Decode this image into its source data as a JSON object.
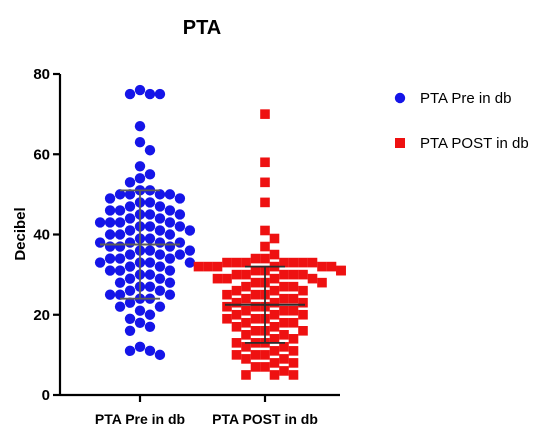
{
  "chart_data": {
    "type": "scatter",
    "title": "PTA",
    "ylabel": "Decibel",
    "xlabel": "",
    "ylim": [
      0,
      80
    ],
    "yticks": [
      0,
      20,
      40,
      60,
      80
    ],
    "grid": false,
    "legend_position": "right",
    "categories": [
      "PTA Pre in db",
      "PTA POST in db"
    ],
    "series": [
      {
        "name": "PTA Pre in db",
        "category": "PTA Pre in db",
        "color": "#1515e8",
        "marker": "circle",
        "mean": 37.5,
        "sd_upper": 51,
        "sd_lower": 24,
        "values": [
          76,
          75,
          75,
          75,
          67,
          63,
          61,
          57,
          55,
          54,
          53,
          51,
          51,
          50,
          50,
          50,
          50,
          49,
          49,
          48,
          48,
          47,
          47,
          46,
          46,
          46,
          45,
          45,
          45,
          44,
          44,
          43,
          43,
          43,
          43,
          42,
          42,
          42,
          41,
          41,
          41,
          40,
          40,
          40,
          39,
          39,
          38,
          38,
          38,
          38,
          37,
          37,
          37,
          36,
          36,
          36,
          35,
          35,
          35,
          34,
          34,
          34,
          33,
          33,
          33,
          33,
          32,
          32,
          31,
          31,
          31,
          30,
          30,
          29,
          29,
          28,
          28,
          27,
          27,
          26,
          26,
          25,
          25,
          25,
          24,
          24,
          23,
          22,
          22,
          21,
          20,
          19,
          18,
          17,
          16,
          12,
          11,
          11,
          10
        ]
      },
      {
        "name": "PTA POST in db",
        "category": "PTA POST in db",
        "color": "#ee1111",
        "marker": "square",
        "mean": 22.5,
        "sd_upper": 32,
        "sd_lower": 13,
        "values": [
          70,
          58,
          53,
          48,
          41,
          39,
          37,
          35,
          34,
          34,
          33,
          33,
          33,
          33,
          33,
          33,
          33,
          32,
          32,
          32,
          32,
          32,
          32,
          31,
          31,
          31,
          31,
          31,
          30,
          30,
          30,
          30,
          30,
          29,
          29,
          29,
          29,
          28,
          28,
          28,
          27,
          27,
          27,
          26,
          26,
          26,
          25,
          25,
          25,
          24,
          24,
          24,
          23,
          23,
          23,
          22,
          22,
          22,
          21,
          21,
          21,
          20,
          20,
          20,
          19,
          19,
          19,
          18,
          18,
          18,
          17,
          17,
          16,
          16,
          16,
          15,
          15,
          14,
          14,
          13,
          13,
          13,
          12,
          12,
          11,
          11,
          10,
          10,
          10,
          9,
          9,
          8,
          8,
          7,
          7,
          6,
          5,
          5,
          5
        ]
      }
    ]
  }
}
